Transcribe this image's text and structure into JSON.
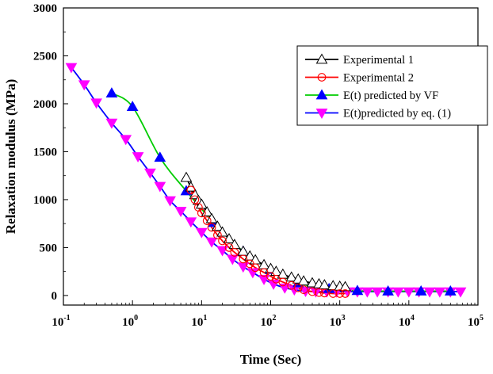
{
  "chart_data": {
    "type": "line",
    "xlabel": "Time (Sec)",
    "ylabel": "Relaxation modulus (MPa)",
    "x_scale": "log",
    "xlim": [
      0.1,
      100000
    ],
    "ylim": [
      -100,
      3000
    ],
    "x_ticks": [
      {
        "base": "10",
        "exp": "-1",
        "value": 0.1
      },
      {
        "base": "10",
        "exp": "0",
        "value": 1
      },
      {
        "base": "10",
        "exp": "1",
        "value": 10
      },
      {
        "base": "10",
        "exp": "2",
        "value": 100
      },
      {
        "base": "10",
        "exp": "3",
        "value": 1000
      },
      {
        "base": "10",
        "exp": "4",
        "value": 10000
      },
      {
        "base": "10",
        "exp": "5",
        "value": 100000
      }
    ],
    "y_ticks": [
      0,
      500,
      1000,
      1500,
      2000,
      2500,
      3000
    ],
    "grid": false,
    "legend_position": "top-right",
    "series": [
      {
        "name": "Experimental 1",
        "color": "#000000",
        "marker": "triangle-up-open",
        "x": [
          6,
          7,
          8,
          9,
          10,
          12,
          14,
          17,
          20,
          25,
          30,
          40,
          50,
          60,
          80,
          100,
          120,
          150,
          200,
          250,
          300,
          400,
          500,
          600,
          800,
          1000,
          1200
        ],
        "y": [
          1230,
          1130,
          1050,
          990,
          950,
          870,
          800,
          720,
          660,
          590,
          530,
          460,
          410,
          370,
          320,
          280,
          250,
          220,
          190,
          170,
          150,
          130,
          120,
          110,
          100,
          95,
          90
        ]
      },
      {
        "name": "Experimental 2",
        "color": "#ff0000",
        "marker": "circle-open",
        "x": [
          7,
          8,
          9,
          10,
          12,
          14,
          17,
          20,
          25,
          30,
          40,
          50,
          60,
          80,
          100,
          120,
          150,
          200,
          250,
          300,
          400,
          500,
          600,
          800,
          1000,
          1200
        ],
        "y": [
          1100,
          1000,
          920,
          860,
          780,
          710,
          630,
          570,
          500,
          450,
          380,
          330,
          290,
          240,
          200,
          170,
          140,
          105,
          80,
          60,
          40,
          30,
          25,
          20,
          20,
          20
        ]
      },
      {
        "name": "E(t) predicted by VF",
        "color": "#00cc00",
        "marker": "triangle-up-filled",
        "marker_color": "#0000ff",
        "x": [
          0.5,
          1,
          2.5,
          6,
          15,
          40,
          100,
          250,
          700,
          1800,
          5000,
          15000,
          40000
        ],
        "y": [
          2110,
          1970,
          1440,
          1090,
          760,
          460,
          270,
          130,
          70,
          50,
          45,
          45,
          45
        ]
      },
      {
        "name": "E(t)predicted by eq. (1)",
        "color": "#0000ff",
        "marker": "triangle-down-filled",
        "marker_color": "#ff00ff",
        "x": [
          0.13,
          0.2,
          0.3,
          0.5,
          0.8,
          1.2,
          1.8,
          2.5,
          3.5,
          5,
          7,
          10,
          14,
          20,
          28,
          40,
          55,
          80,
          110,
          160,
          220,
          320,
          450,
          650,
          900,
          1300,
          1800,
          2500,
          3500,
          5000,
          7000,
          10000,
          14000,
          20000,
          28000,
          40000,
          56000
        ],
        "y": [
          2380,
          2200,
          2010,
          1800,
          1630,
          1450,
          1280,
          1140,
          990,
          880,
          770,
          660,
          560,
          470,
          380,
          300,
          240,
          170,
          120,
          80,
          60,
          45,
          40,
          40,
          40,
          40,
          40,
          40,
          40,
          40,
          40,
          40,
          40,
          40,
          40,
          40,
          40
        ]
      }
    ]
  }
}
